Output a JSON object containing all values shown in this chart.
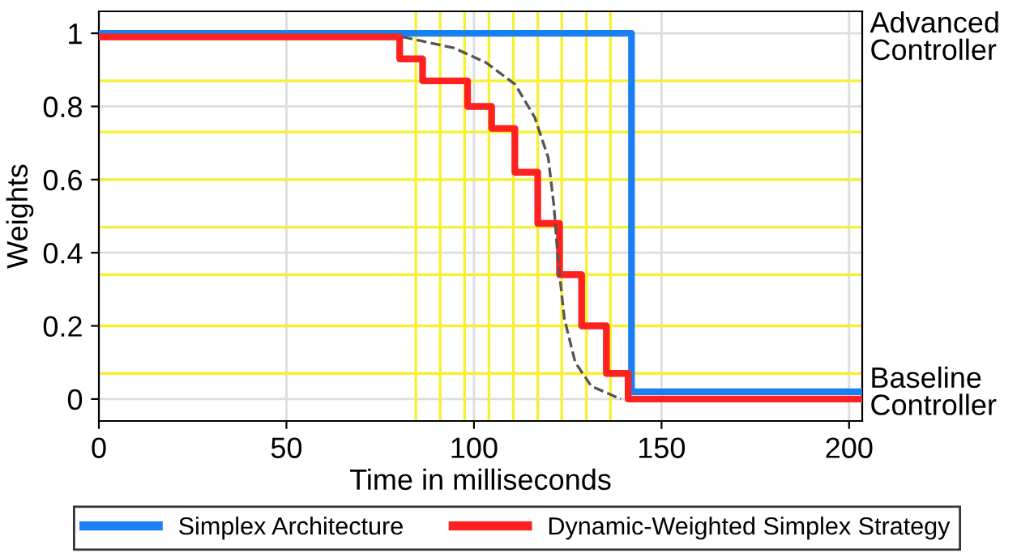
{
  "chart_data": {
    "type": "step",
    "xlabel": "Time in milliseconds",
    "ylabel": "Weights",
    "xlim": [
      0,
      203.5
    ],
    "ylim": [
      -0.06,
      1.06
    ],
    "xticks": [
      0,
      50,
      100,
      150,
      200
    ],
    "yticks": [
      0,
      0.2,
      0.4,
      0.6,
      0.8,
      1
    ],
    "grid": true,
    "legend": "bottom",
    "annotations": [
      "Advanced\nController",
      "Baseline\nController"
    ],
    "ref_lines": [
      {
        "axis": "x",
        "value": 84.5,
        "color": "#f7f032"
      },
      {
        "axis": "x",
        "value": 91,
        "color": "#f7f032"
      },
      {
        "axis": "x",
        "value": 97.5,
        "color": "#f7f032"
      },
      {
        "axis": "x",
        "value": 104,
        "color": "#f7f032"
      },
      {
        "axis": "x",
        "value": 110.5,
        "color": "#f7f032"
      },
      {
        "axis": "x",
        "value": 117,
        "color": "#f7f032"
      },
      {
        "axis": "x",
        "value": 123.4,
        "color": "#f7f032"
      },
      {
        "axis": "x",
        "value": 130,
        "color": "#f7f032"
      },
      {
        "axis": "x",
        "value": 136.4,
        "color": "#f7f032"
      },
      {
        "axis": "y",
        "value": 0.87,
        "color": "#f7f032"
      },
      {
        "axis": "y",
        "value": 0.73,
        "color": "#f7f032"
      },
      {
        "axis": "y",
        "value": 0.6,
        "color": "#f7f032"
      },
      {
        "axis": "y",
        "value": 0.47,
        "color": "#f7f032"
      },
      {
        "axis": "y",
        "value": 0.34,
        "color": "#f7f032"
      },
      {
        "axis": "y",
        "value": 0.2,
        "color": "#f7f032"
      },
      {
        "axis": "y",
        "value": 0.07,
        "color": "#f7f032"
      }
    ],
    "series": [
      {
        "type": "line",
        "color": "#555555",
        "line_style": "dashed",
        "x": [
          81,
          94.6,
          103.2,
          111,
          116.2,
          119.8,
          121.3,
          122.4,
          124.1,
          127,
          131.3,
          139.2
        ],
        "values": [
          0.99,
          0.96,
          0.92,
          0.86,
          0.77,
          0.66,
          0.53,
          0.38,
          0.22,
          0.1,
          0.035,
          0
        ]
      },
      {
        "name": "Simplex Architecture",
        "color": "#1a7ff0",
        "x": [
          0,
          142,
          203.5
        ],
        "values": [
          1,
          0.02,
          0.02
        ]
      },
      {
        "name": "Dynamic-Weighted Simplex Strategy",
        "color": "#ff2020",
        "x": [
          0,
          80.2,
          86.3,
          98.3,
          104.7,
          110.9,
          117,
          122.8,
          128.7,
          135.3,
          141.1,
          203.5
        ],
        "values": [
          0.99,
          0.93,
          0.87,
          0.8,
          0.74,
          0.62,
          0.48,
          0.34,
          0.2,
          0.07,
          0,
          0
        ]
      }
    ]
  }
}
